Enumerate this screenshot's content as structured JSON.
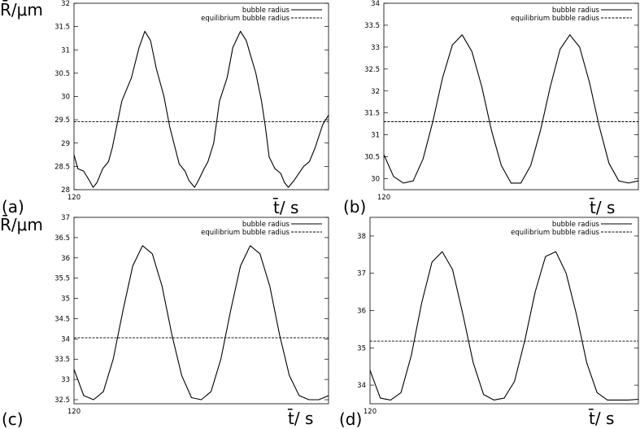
{
  "ylabel": "R̄/μm",
  "xlabel": "t̄/ s",
  "chart_data": [
    {
      "type": "line",
      "panel": "(a)",
      "xstart_label": "120",
      "ylabel": "R̄/μm",
      "xlabel": "t̄/ s",
      "ylim": [
        28,
        32
      ],
      "yticks": [
        "28",
        "28.5",
        "29",
        "29.5",
        "30",
        "30.5",
        "31",
        "31.5",
        "32"
      ],
      "legend": "top-right",
      "series": [
        {
          "name": "bubble radius",
          "style": "solid",
          "x": [
            0.0,
            0.02,
            0.05,
            0.08,
            0.1,
            0.12,
            0.15,
            0.18,
            0.2,
            0.25,
            0.3,
            0.34,
            0.37,
            0.4,
            0.43,
            0.47,
            0.5,
            0.55,
            0.58,
            0.6,
            0.63,
            0.65,
            0.68,
            0.7,
            0.73,
            0.76,
            0.8,
            0.83,
            0.87,
            0.9,
            0.95,
            0.98,
            1.0,
            1.02,
            1.05,
            1.08,
            1.1,
            1.12,
            1.15,
            1.2,
            1.23,
            1.26,
            1.3,
            1.33
          ],
          "y": [
            28.75,
            28.45,
            28.4,
            28.2,
            28.05,
            28.15,
            28.45,
            28.6,
            28.9,
            29.9,
            30.4,
            31.05,
            31.4,
            31.2,
            30.6,
            30.0,
            29.35,
            28.55,
            28.4,
            28.2,
            28.05,
            28.2,
            28.45,
            28.6,
            29.0,
            29.9,
            30.4,
            31.05,
            31.4,
            31.2,
            30.5,
            29.9,
            29.35,
            28.7,
            28.45,
            28.35,
            28.15,
            28.05,
            28.2,
            28.5,
            28.6,
            28.9,
            29.4,
            29.6
          ]
        },
        {
          "name": "equilibrium bubble radius",
          "style": "dashed",
          "x": [
            0.0,
            1.33
          ],
          "y": [
            29.46,
            29.46
          ]
        }
      ]
    },
    {
      "type": "line",
      "panel": "(b)",
      "xstart_label": "120",
      "xlabel": "t̄/ s",
      "ylim": [
        29.75,
        34
      ],
      "yticks": [
        "30",
        "30.5",
        "31",
        "31.5",
        "32",
        "32.5",
        "33",
        "33.5",
        "34"
      ],
      "legend": "top-right",
      "series": [
        {
          "name": "bubble radius",
          "style": "solid",
          "x": [
            0.0,
            0.05,
            0.1,
            0.15,
            0.2,
            0.25,
            0.3,
            0.35,
            0.4,
            0.45,
            0.5,
            0.55,
            0.6,
            0.65,
            0.7,
            0.75,
            0.8,
            0.85,
            0.9,
            0.95,
            1.0,
            1.05,
            1.1,
            1.15,
            1.2,
            1.25,
            1.3
          ],
          "y": [
            30.55,
            30.05,
            29.9,
            29.95,
            30.45,
            31.3,
            32.3,
            33.05,
            33.28,
            32.9,
            32.1,
            31.1,
            30.3,
            29.9,
            29.9,
            30.3,
            31.1,
            32.1,
            32.95,
            33.28,
            33.0,
            32.2,
            31.2,
            30.35,
            29.95,
            29.9,
            29.95
          ]
        },
        {
          "name": "equilibrium bubble radius",
          "style": "dashed",
          "x": [
            0.0,
            1.3
          ],
          "y": [
            31.3,
            31.3
          ]
        }
      ]
    },
    {
      "type": "line",
      "panel": "(c)",
      "xstart_label": "120",
      "ylabel": "R̄/μm",
      "xlabel": "t̄/ s",
      "ylim": [
        32.4,
        37
      ],
      "yticks": [
        "32.5",
        "33",
        "33.5",
        "34",
        "34.5",
        "35",
        "35.5",
        "36",
        "36.5",
        "37"
      ],
      "legend": "top-right",
      "series": [
        {
          "name": "bubble radius",
          "style": "solid",
          "x": [
            0.0,
            0.05,
            0.1,
            0.15,
            0.2,
            0.25,
            0.3,
            0.35,
            0.4,
            0.45,
            0.5,
            0.55,
            0.6,
            0.65,
            0.7,
            0.75,
            0.8,
            0.85,
            0.9,
            0.95,
            1.0,
            1.05,
            1.1,
            1.15,
            1.2,
            1.25,
            1.3
          ],
          "y": [
            33.25,
            32.6,
            32.5,
            32.7,
            33.5,
            34.7,
            35.8,
            36.3,
            36.1,
            35.3,
            34.1,
            33.1,
            32.55,
            32.5,
            32.7,
            33.5,
            34.7,
            35.8,
            36.3,
            36.1,
            35.3,
            34.1,
            33.1,
            32.6,
            32.5,
            32.5,
            32.6
          ]
        },
        {
          "name": "equilibrium bubble radius",
          "style": "dashed",
          "x": [
            0.0,
            1.3
          ],
          "y": [
            34.03,
            34.03
          ]
        }
      ]
    },
    {
      "type": "line",
      "panel": "(d)",
      "xstart_label": "120",
      "xlabel": "t̄/ s",
      "ylim": [
        33.5,
        38.5
      ],
      "yticks": [
        "34",
        "35",
        "36",
        "37",
        "38"
      ],
      "legend": "top-right",
      "series": [
        {
          "name": "bubble radius",
          "style": "solid",
          "x": [
            0.0,
            0.05,
            0.1,
            0.15,
            0.2,
            0.25,
            0.3,
            0.35,
            0.4,
            0.45,
            0.5,
            0.55,
            0.6,
            0.65,
            0.7,
            0.75,
            0.8,
            0.85,
            0.9,
            0.95,
            1.0,
            1.05,
            1.1,
            1.15,
            1.2,
            1.25,
            1.3
          ],
          "y": [
            34.4,
            33.65,
            33.6,
            33.8,
            34.8,
            36.2,
            37.3,
            37.58,
            37.1,
            35.9,
            34.6,
            33.75,
            33.6,
            33.65,
            34.1,
            35.2,
            36.5,
            37.45,
            37.58,
            37.0,
            35.9,
            34.6,
            33.8,
            33.6,
            33.6,
            33.6,
            33.62
          ]
        },
        {
          "name": "equilibrium bubble radius",
          "style": "dashed",
          "x": [
            0.0,
            1.3
          ],
          "y": [
            35.18,
            35.18
          ]
        }
      ]
    }
  ]
}
